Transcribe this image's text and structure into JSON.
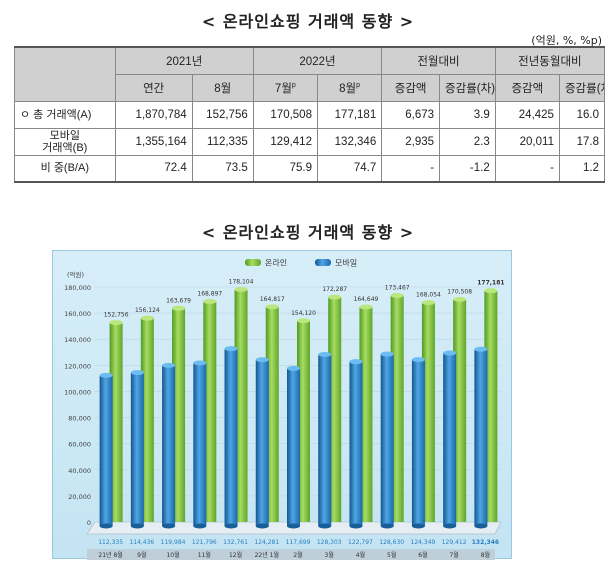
{
  "titles": {
    "table_title": "< 온라인쇼핑 거래액 동향 >",
    "chart_title": "< 온라인쇼핑 거래액 동향 >"
  },
  "units": "(억원, %, %p)",
  "table": {
    "group_headers": [
      "2021년",
      "2022년",
      "전월대비",
      "전년동월대비"
    ],
    "sub_headers": [
      "연간",
      "8월",
      "7월",
      "8월",
      "증감액",
      "증감률(차)",
      "증감액",
      "증감률(차)"
    ],
    "sub_header_sups": [
      "",
      "",
      "p",
      "p",
      "",
      "",
      "",
      ""
    ],
    "rows": [
      {
        "label": "ㅇ 총 거래액(A)",
        "values": [
          "1,870,784",
          "152,756",
          "170,508",
          "177,181",
          "6,673",
          "3.9",
          "24,425",
          "16.0"
        ]
      },
      {
        "label_line1": "모바일",
        "label_line2": "거래액(B)",
        "values": [
          "1,355,164",
          "112,335",
          "129,412",
          "132,346",
          "2,935",
          "2.3",
          "20,011",
          "17.8"
        ]
      },
      {
        "label": "비 중(B/A)",
        "values": [
          "72.4",
          "73.5",
          "75.9",
          "74.7",
          "-",
          "-1.2",
          "-",
          "1.2"
        ]
      }
    ]
  },
  "chart_data": {
    "type": "bar",
    "ylabel": "(억원)",
    "ylim": [
      0,
      180000
    ],
    "yticks": [
      "0",
      "20,000",
      "40,000",
      "60,000",
      "80,000",
      "100,000",
      "120,000",
      "140,000",
      "160,000",
      "180,000"
    ],
    "categories": [
      "21년 8월",
      "9월",
      "10월",
      "11월",
      "12월",
      "22년 1월",
      "2월",
      "3월",
      "4월",
      "5월",
      "6월",
      "7월",
      "8월"
    ],
    "series": [
      {
        "name": "온라인",
        "color": "#7cc242",
        "values": [
          152756,
          156124,
          163679,
          168897,
          178104,
          164817,
          154120,
          172287,
          164649,
          173467,
          168054,
          170508,
          177181
        ],
        "labels": [
          "152,756",
          "156,124",
          "163,679",
          "168,897",
          "178,104",
          "164,817",
          "154,120",
          "172,287",
          "164,649",
          "173,467",
          "168,054",
          "170,508",
          "177,181"
        ]
      },
      {
        "name": "모바일",
        "color": "#2f86c8",
        "values": [
          112335,
          114436,
          119984,
          121796,
          132761,
          124281,
          117699,
          128303,
          122797,
          128630,
          124349,
          129412,
          132346
        ],
        "labels": [
          "112,335",
          "114,436",
          "119,984",
          "121,796",
          "132,761",
          "124,281",
          "117,699",
          "128,303",
          "122,797",
          "128,630",
          "124,349",
          "129,412",
          "132,346"
        ]
      }
    ]
  }
}
